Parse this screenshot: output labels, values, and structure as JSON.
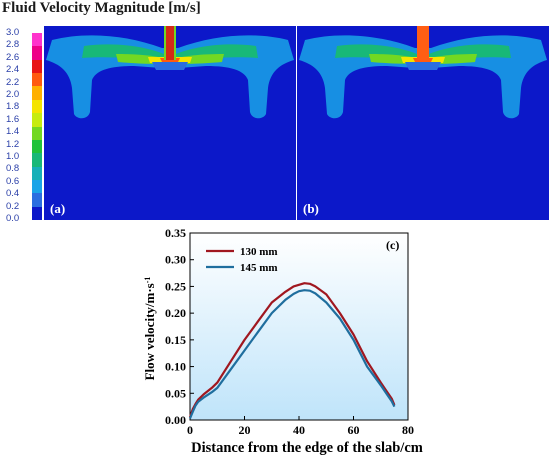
{
  "figure_title": "Fluid Velocity Magnitude [m/s]",
  "colorbar": {
    "ticks": [
      "3.0",
      "2.8",
      "2.6",
      "2.4",
      "2.2",
      "2.0",
      "1.8",
      "1.6",
      "1.4",
      "1.2",
      "1.0",
      "0.8",
      "0.6",
      "0.4",
      "0.2",
      "0.0"
    ],
    "colors": [
      "#ff33cc",
      "#ee0088",
      "#e81515",
      "#ff5a10",
      "#ffb000",
      "#f4e400",
      "#c6ec10",
      "#72d822",
      "#20c23a",
      "#18b878",
      "#16b0b8",
      "#1aa4e8",
      "#2a6ee0",
      "#0c18c9"
    ]
  },
  "panels": [
    {
      "label": "(a)",
      "jet_color": "#d42a16"
    },
    {
      "label": "(b)",
      "jet_color": "#ff5e14"
    }
  ],
  "chart_data": {
    "type": "line",
    "label": "(c)",
    "xlabel": "Distance from the edge of the slab/cm",
    "ylabel": "Flow velocity/m·s",
    "ylabel_sup": "-1",
    "xlim": [
      0,
      80
    ],
    "ylim": [
      0,
      0.35
    ],
    "xticks": [
      "0",
      "20",
      "40",
      "60",
      "80"
    ],
    "yticks": [
      "0.00",
      "0.05",
      "0.10",
      "0.15",
      "0.20",
      "0.25",
      "0.30",
      "0.35"
    ],
    "legend_position": "top-left",
    "series": [
      {
        "name": "130 mm",
        "color": "#a0171f",
        "x": [
          0,
          1,
          2,
          3,
          5,
          8,
          10,
          15,
          20,
          25,
          30,
          35,
          38,
          40,
          42,
          44,
          46,
          50,
          55,
          60,
          65,
          70,
          72,
          74,
          75
        ],
        "y": [
          0.005,
          0.02,
          0.03,
          0.038,
          0.048,
          0.06,
          0.07,
          0.11,
          0.15,
          0.185,
          0.22,
          0.24,
          0.25,
          0.253,
          0.256,
          0.255,
          0.25,
          0.235,
          0.2,
          0.16,
          0.11,
          0.07,
          0.055,
          0.04,
          0.028
        ]
      },
      {
        "name": "145 mm",
        "color": "#1f6e9e",
        "x": [
          0,
          1,
          2,
          3,
          5,
          8,
          10,
          15,
          20,
          25,
          30,
          35,
          38,
          40,
          42,
          44,
          46,
          50,
          55,
          60,
          65,
          70,
          72,
          74,
          75
        ],
        "y": [
          0.003,
          0.015,
          0.027,
          0.034,
          0.042,
          0.052,
          0.06,
          0.095,
          0.13,
          0.165,
          0.2,
          0.225,
          0.236,
          0.241,
          0.243,
          0.242,
          0.237,
          0.22,
          0.19,
          0.15,
          0.1,
          0.065,
          0.05,
          0.035,
          0.025
        ]
      }
    ]
  }
}
